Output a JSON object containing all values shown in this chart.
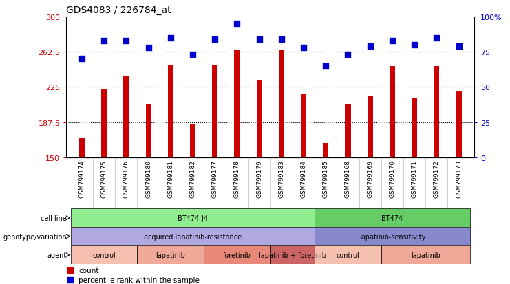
{
  "title": "GDS4083 / 226784_at",
  "samples": [
    "GSM799174",
    "GSM799175",
    "GSM799176",
    "GSM799180",
    "GSM799181",
    "GSM799182",
    "GSM799177",
    "GSM799178",
    "GSM799179",
    "GSM799183",
    "GSM799184",
    "GSM799185",
    "GSM799168",
    "GSM799169",
    "GSM799170",
    "GSM799171",
    "GSM799172",
    "GSM799173"
  ],
  "counts": [
    170,
    222,
    237,
    207,
    248,
    185,
    248,
    265,
    232,
    265,
    218,
    165,
    207,
    215,
    247,
    213,
    247,
    221
  ],
  "percentiles": [
    70,
    83,
    83,
    78,
    85,
    73,
    84,
    95,
    84,
    84,
    78,
    65,
    73,
    79,
    83,
    80,
    85,
    79
  ],
  "ymin": 150,
  "ymax": 300,
  "yticks": [
    150,
    187.5,
    225,
    262.5,
    300
  ],
  "ytick_labels": [
    "150",
    "187.5",
    "225",
    "262.5",
    "300"
  ],
  "right_yticks": [
    0,
    25,
    50,
    75,
    100
  ],
  "right_ytick_labels": [
    "0",
    "25",
    "50",
    "75",
    "100%"
  ],
  "bar_color": "#cc0000",
  "dot_color": "#0000cc",
  "cell_line_groups": [
    {
      "label": "BT474-J4",
      "start": 0,
      "end": 11,
      "color": "#90ee90"
    },
    {
      "label": "BT474",
      "start": 11,
      "end": 18,
      "color": "#66cc66"
    }
  ],
  "genotype_groups": [
    {
      "label": "acquired lapatinib-resistance",
      "start": 0,
      "end": 11,
      "color": "#b0a8e0"
    },
    {
      "label": "lapatinib-sensitivity",
      "start": 11,
      "end": 18,
      "color": "#8888cc"
    }
  ],
  "agent_groups": [
    {
      "label": "control",
      "start": 0,
      "end": 3,
      "color": "#f5c0b0"
    },
    {
      "label": "lapatinib",
      "start": 3,
      "end": 6,
      "color": "#f0a898"
    },
    {
      "label": "foretinib",
      "start": 6,
      "end": 9,
      "color": "#e88878"
    },
    {
      "label": "lapatinib + foretinib",
      "start": 9,
      "end": 11,
      "color": "#cc6666"
    },
    {
      "label": "control",
      "start": 11,
      "end": 14,
      "color": "#f5c0b0"
    },
    {
      "label": "lapatinib",
      "start": 14,
      "end": 18,
      "color": "#f0a898"
    }
  ],
  "row_labels": [
    "cell line",
    "genotype/variation",
    "agent"
  ],
  "bg_color": "#ffffff",
  "bar_width": 0.25,
  "dot_size": 35,
  "xlabel_gray_bg": "#d0d0d0"
}
